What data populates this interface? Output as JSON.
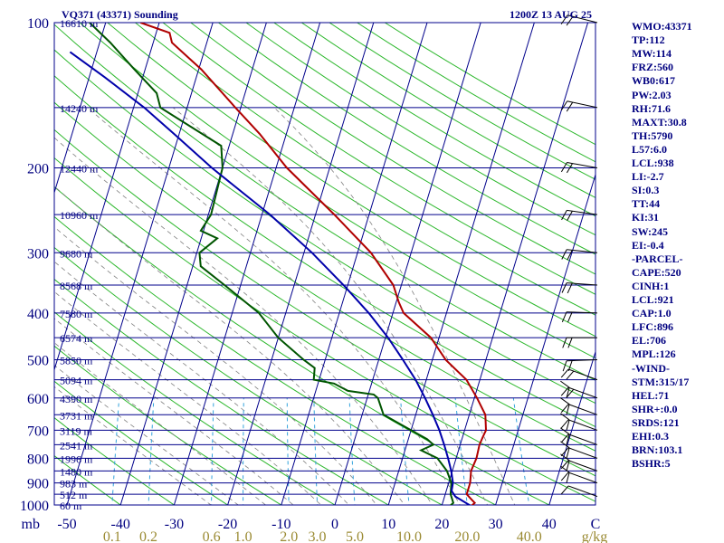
{
  "header": {
    "station": "VQ371 (43371) Sounding",
    "time": "1200Z 13 AUG 25"
  },
  "colors": {
    "background": "#ffffff",
    "text": "#000080",
    "isobar": "#00008b",
    "isotherm": "#00008b",
    "dry_adiabat": "#2eb82e",
    "moist_adiabat": "#808080",
    "mixing_ratio": "#33a3dc",
    "temperature": "#b00000",
    "dewpoint": "#005500",
    "parcel": "#0000aa",
    "wind": "#000000",
    "mixing_label": "#9a8a32"
  },
  "chart_data": {
    "type": "line",
    "title": "VQ371 (43371) Sounding",
    "subtitle": "1200Z 13 AUG 25",
    "xlabel": "",
    "ylabel": "mb",
    "xlim": [
      -50,
      50
    ],
    "ylim": [
      1000,
      100
    ],
    "y_scale": "log",
    "temperature_ticks": [
      "-50",
      "-40",
      "-30",
      "-20",
      "-10",
      "0",
      "10",
      "20",
      "30",
      "40",
      "C"
    ],
    "pressure_ticks": [
      "100",
      "200",
      "300",
      "400",
      "500",
      "600",
      "700",
      "800",
      "900",
      "1000"
    ],
    "height_labels": [
      {
        "p": 100,
        "label": "16610 m"
      },
      {
        "p": 150,
        "label": "14240 m"
      },
      {
        "p": 200,
        "label": "12440 m"
      },
      {
        "p": 250,
        "label": "10960 m"
      },
      {
        "p": 300,
        "label": "9680 m"
      },
      {
        "p": 350,
        "label": "8568 m"
      },
      {
        "p": 400,
        "label": "7580 m"
      },
      {
        "p": 450,
        "label": "6574 m"
      },
      {
        "p": 500,
        "label": "5850 m"
      },
      {
        "p": 550,
        "label": "5094 m"
      },
      {
        "p": 600,
        "label": "4390 m"
      },
      {
        "p": 650,
        "label": "3731 m"
      },
      {
        "p": 700,
        "label": "3119 m"
      },
      {
        "p": 750,
        "label": "2541 m"
      },
      {
        "p": 800,
        "label": "1996 m"
      },
      {
        "p": 850,
        "label": "1480 m"
      },
      {
        "p": 900,
        "label": "983 m"
      },
      {
        "p": 950,
        "label": "512 m"
      },
      {
        "p": 1000,
        "label": "60 m"
      }
    ],
    "mixing_ratio_labels": [
      "0.1",
      "0.2",
      "0.6",
      "1.0",
      "2.0",
      "3.0",
      "5.0",
      "10.0",
      "20.0",
      "40.0",
      "g/kg"
    ],
    "grid": true,
    "series": [
      {
        "key": "temperature",
        "points": [
          [
            1005,
            25.5
          ],
          [
            990,
            26.0
          ],
          [
            970,
            25.0
          ],
          [
            950,
            24.0
          ],
          [
            900,
            24.0
          ],
          [
            850,
            23.5
          ],
          [
            800,
            23.8
          ],
          [
            750,
            23.6
          ],
          [
            720,
            23.8
          ],
          [
            700,
            24.0
          ],
          [
            650,
            23.0
          ],
          [
            600,
            20.5
          ],
          [
            550,
            17.5
          ],
          [
            500,
            12.5
          ],
          [
            450,
            8.5
          ],
          [
            400,
            2.0
          ],
          [
            380,
            0.5
          ],
          [
            350,
            -1.5
          ],
          [
            300,
            -7.5
          ],
          [
            250,
            -16.5
          ],
          [
            200,
            -28.0
          ],
          [
            170,
            -35.0
          ],
          [
            150,
            -41.0
          ],
          [
            125,
            -49.5
          ],
          [
            110,
            -56.5
          ],
          [
            105,
            -57.5
          ],
          [
            100,
            -63.5
          ]
        ]
      },
      {
        "key": "dewpoint",
        "points": [
          [
            1005,
            21.5
          ],
          [
            990,
            22.0
          ],
          [
            950,
            21.0
          ],
          [
            900,
            20.5
          ],
          [
            850,
            19.0
          ],
          [
            800,
            16.5
          ],
          [
            770,
            13.0
          ],
          [
            750,
            15.0
          ],
          [
            730,
            13.5
          ],
          [
            700,
            10.0
          ],
          [
            650,
            4.0
          ],
          [
            600,
            2.0
          ],
          [
            590,
            1.0
          ],
          [
            580,
            -4.0
          ],
          [
            560,
            -7.0
          ],
          [
            550,
            -11.0
          ],
          [
            520,
            -11.5
          ],
          [
            500,
            -14.0
          ],
          [
            450,
            -20.0
          ],
          [
            400,
            -25.0
          ],
          [
            350,
            -33.0
          ],
          [
            320,
            -38.5
          ],
          [
            300,
            -39.5
          ],
          [
            280,
            -37.0
          ],
          [
            270,
            -40.5
          ],
          [
            250,
            -39.5
          ],
          [
            200,
            -40.0
          ],
          [
            180,
            -41.5
          ],
          [
            150,
            -55.0
          ],
          [
            140,
            -56.5
          ],
          [
            125,
            -62.0
          ],
          [
            110,
            -68.0
          ],
          [
            100,
            -73.0
          ]
        ]
      },
      {
        "key": "parcel",
        "points": [
          [
            1005,
            25.5
          ],
          [
            960,
            22.0
          ],
          [
            935,
            21.0
          ],
          [
            900,
            20.8
          ],
          [
            850,
            19.8
          ],
          [
            800,
            18.5
          ],
          [
            750,
            17.0
          ],
          [
            700,
            15.3
          ],
          [
            650,
            13.2
          ],
          [
            600,
            10.8
          ],
          [
            550,
            8.0
          ],
          [
            500,
            4.5
          ],
          [
            450,
            0.5
          ],
          [
            400,
            -4.5
          ],
          [
            350,
            -10.8
          ],
          [
            300,
            -18.5
          ],
          [
            250,
            -28.5
          ],
          [
            200,
            -42.0
          ],
          [
            170,
            -51.0
          ],
          [
            150,
            -58.0
          ],
          [
            130,
            -67.0
          ],
          [
            115,
            -75.0
          ]
        ]
      }
    ],
    "wind_barbs_right": [
      960,
      900,
      850,
      800,
      750,
      700,
      650,
      600,
      550,
      500,
      450,
      400,
      350,
      300,
      250,
      200,
      150,
      100
    ],
    "wind_barbs_left": [
      900,
      850,
      800,
      750,
      700,
      650,
      600
    ]
  },
  "indices": [
    "WMO:43371",
    "TP:112",
    "MW:114",
    "FRZ:560",
    "WB0:617",
    "PW:2.03",
    "RH:71.6",
    "MAXT:30.8",
    "TH:5790",
    "L57:6.0",
    "LCL:938",
    "LI:-2.7",
    "SI:0.3",
    "TT:44",
    "KI:31",
    "SW:245",
    "EI:-0.4",
    "-PARCEL-",
    "CAPE:520",
    "CINH:1",
    "LCL:921",
    "CAP:1.0",
    "LFC:896",
    "EL:706",
    "MPL:126",
    "-WIND-",
    "STM:315/17",
    "HEL:71",
    "SHR+:0.0",
    "SRDS:121",
    "EHI:0.3",
    "BRN:103.1",
    "BSHR:5"
  ]
}
